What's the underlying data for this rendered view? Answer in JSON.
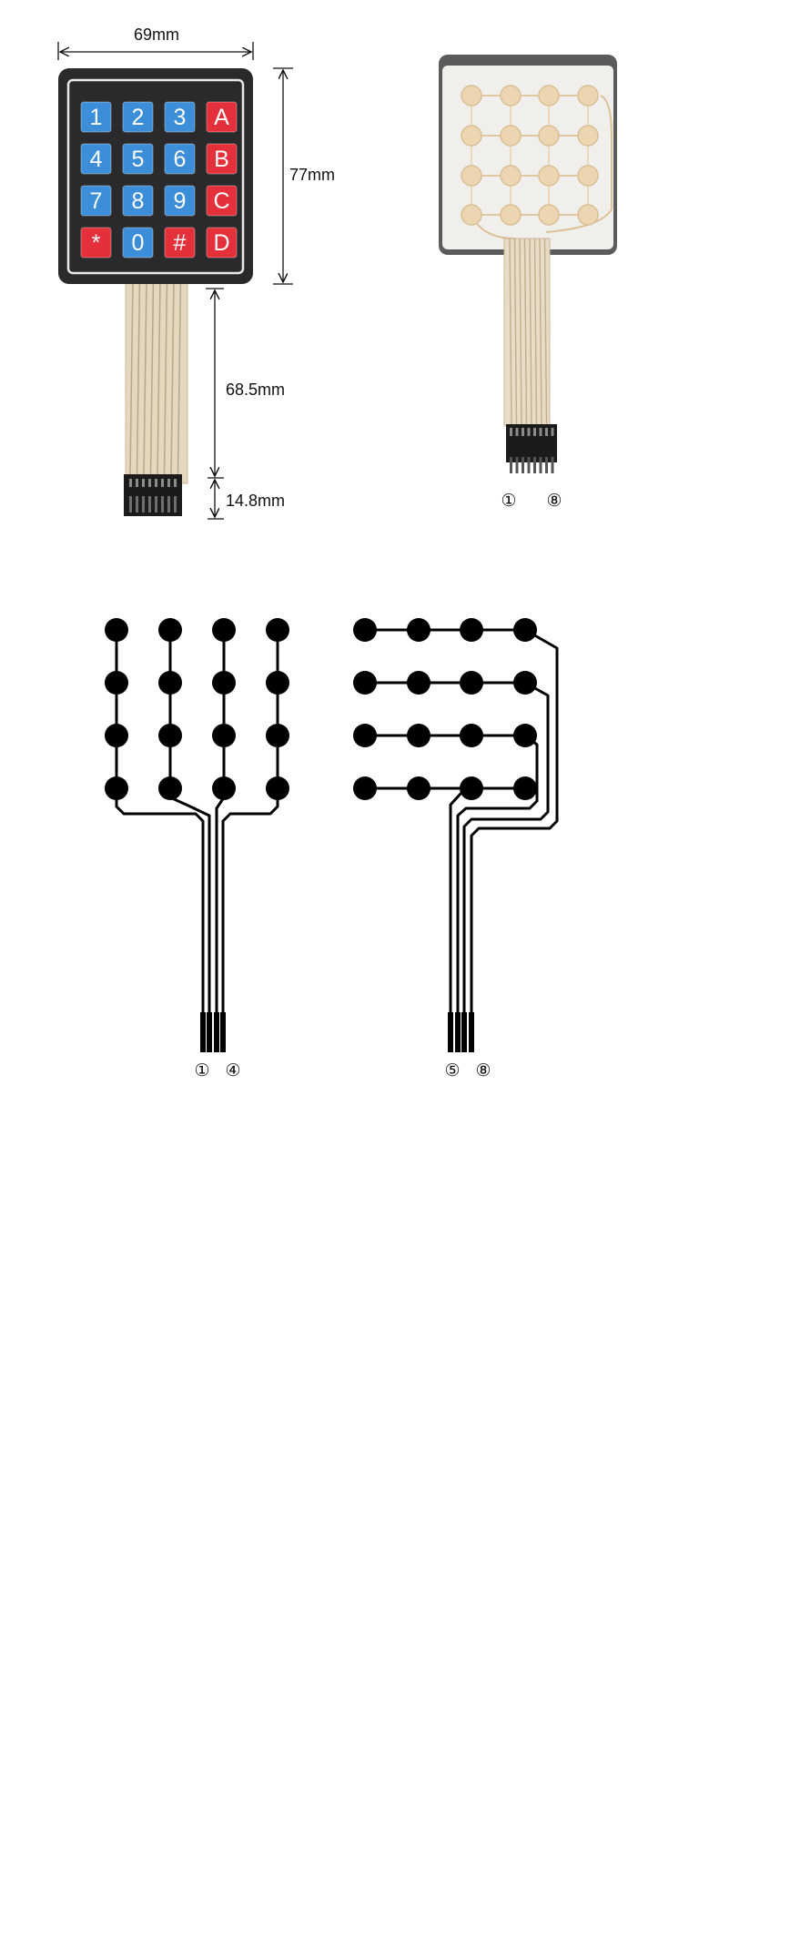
{
  "keypad": {
    "width_label": "69mm",
    "height_label": "77mm",
    "cable_label": "68.5mm",
    "connector_label": "14.8mm",
    "colors": {
      "blue": "#3d8ed8",
      "red": "#e4303a",
      "body": "#2a2a2c",
      "frame": "#e8e8e8"
    },
    "keys": [
      [
        "1",
        "2",
        "3",
        "A"
      ],
      [
        "4",
        "5",
        "6",
        "B"
      ],
      [
        "7",
        "8",
        "9",
        "C"
      ],
      [
        "*",
        "0",
        "#",
        "D"
      ]
    ],
    "key_colors": [
      [
        "blue",
        "blue",
        "blue",
        "red"
      ],
      [
        "blue",
        "blue",
        "blue",
        "red"
      ],
      [
        "blue",
        "blue",
        "blue",
        "red"
      ],
      [
        "red",
        "blue",
        "red",
        "red"
      ]
    ]
  },
  "back_photo": {
    "pin_first": "①",
    "pin_last": "⑧"
  },
  "column_schematic": {
    "pin_first": "①",
    "pin_last": "④"
  },
  "row_schematic": {
    "pin_first": "⑤",
    "pin_last": "⑧"
  }
}
